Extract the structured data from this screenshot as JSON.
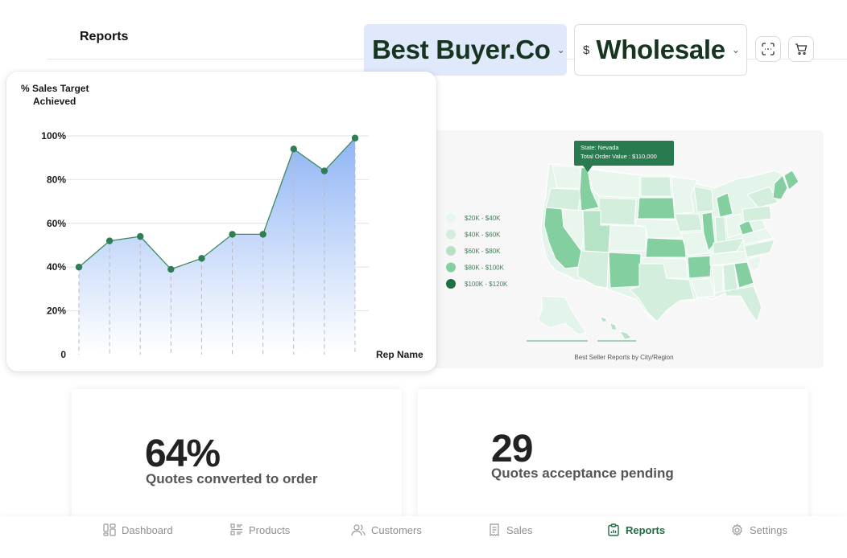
{
  "header": {
    "title": "Reports",
    "company": "Best Buyer.Co",
    "currency_symbol": "$",
    "pricing_tier": "Wholesale",
    "icons": [
      "scan-icon",
      "cart-icon",
      "chevron-down-icon"
    ]
  },
  "chart_data": [
    {
      "type": "area",
      "title": "% Sales Target Achieved",
      "xlabel": "Rep Name",
      "ylabel": "% Sales Target Achieved",
      "y_ticks": [
        "0",
        "20%",
        "40%",
        "60%",
        "80%",
        "100%"
      ],
      "ylim": [
        0,
        100
      ],
      "x": [
        1,
        2,
        3,
        4,
        5,
        6,
        7,
        8,
        9,
        10
      ],
      "values": [
        40,
        52,
        54,
        39,
        44,
        55,
        55,
        94,
        84,
        99
      ],
      "grid": true,
      "colors": {
        "line": "#3d8a5e",
        "point": "#2f7d52",
        "fill_top": "#8fb4f5",
        "fill_bottom": "#ffffff"
      }
    },
    {
      "type": "heatmap",
      "title": "Best Seller Reports by City/Region",
      "legend": [
        {
          "label": "$20K - $40K",
          "color": "#e9f6ee"
        },
        {
          "label": "$40K - $60K",
          "color": "#d3eedd"
        },
        {
          "label": "$60K - $80K",
          "color": "#b6e2c5"
        },
        {
          "label": "$80K - $100K",
          "color": "#84cfa0"
        },
        {
          "label": "$100K - $120K",
          "color": "#1f6e46"
        }
      ],
      "tooltip": {
        "state": "State: Nevada",
        "value": "Total Order Value : $110,000"
      }
    }
  ],
  "stats": [
    {
      "value": "64%",
      "label": "Quotes converted to order"
    },
    {
      "value": "29",
      "label": "Quotes acceptance pending"
    }
  ],
  "nav": {
    "items": [
      {
        "label": "Dashboard",
        "icon": "dashboard-icon"
      },
      {
        "label": "Products",
        "icon": "products-icon"
      },
      {
        "label": "Customers",
        "icon": "customers-icon"
      },
      {
        "label": "Sales",
        "icon": "sales-icon"
      },
      {
        "label": "Reports",
        "icon": "reports-icon",
        "active": true
      },
      {
        "label": "Settings",
        "icon": "settings-icon"
      }
    ],
    "active_color": "#1f6e46",
    "inactive_color": "#8f8f8f"
  }
}
